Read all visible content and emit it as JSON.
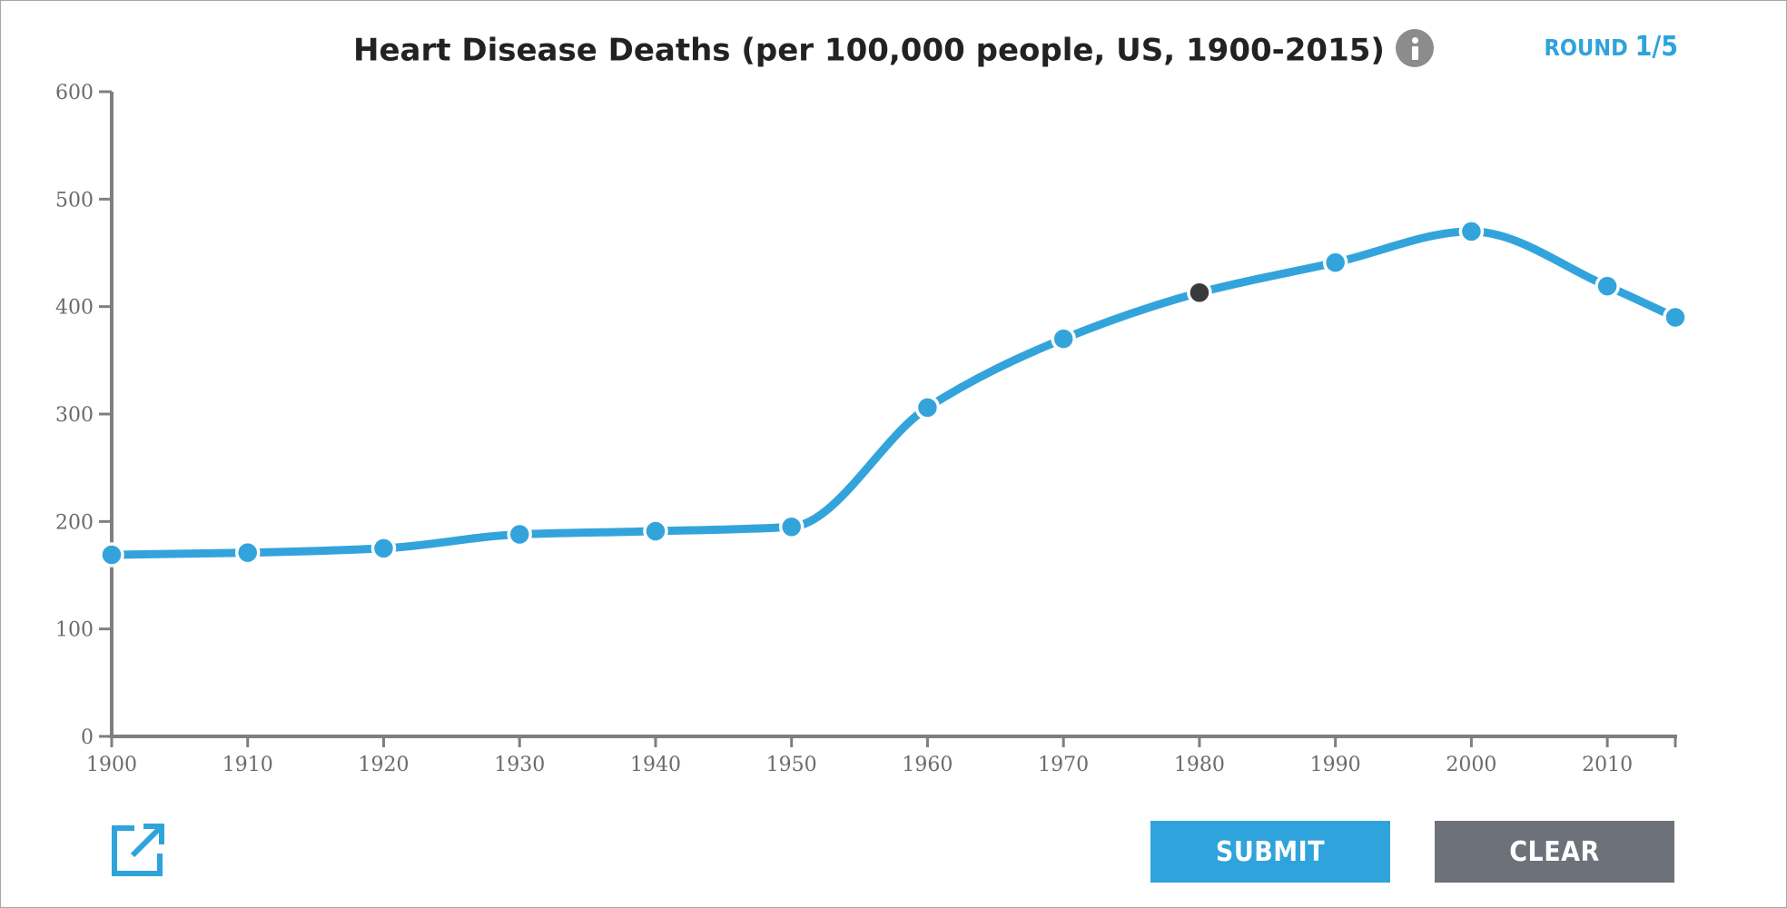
{
  "header": {
    "title": "Heart Disease Deaths (per 100,000 people, US, 1900-2015)",
    "round_label": "ROUND ",
    "round_value": "1/5"
  },
  "icons": {
    "info": "info-icon",
    "share": "external-link-icon"
  },
  "buttons": {
    "submit_label": "SUBMIT",
    "clear_label": "CLEAR"
  },
  "colors": {
    "accent": "#2fa3dc",
    "line": "#33a4db",
    "point": "#33a4db",
    "highlight_point": "#3a3a3a",
    "axis": "#7f7f7f",
    "tick_text": "#6b6b6b",
    "clear_button": "#6d7179"
  },
  "chart_data": {
    "type": "line",
    "title": "Heart Disease Deaths (per 100,000 people, US, 1900-2015)",
    "xlabel": "",
    "ylabel": "",
    "xlim": [
      1900,
      2015
    ],
    "ylim": [
      0,
      600
    ],
    "x_ticks": [
      1900,
      1910,
      1920,
      1930,
      1940,
      1950,
      1960,
      1970,
      1980,
      1990,
      2000,
      2010
    ],
    "y_ticks": [
      0,
      100,
      200,
      300,
      400,
      500,
      600
    ],
    "grid": false,
    "highlight_index": 8,
    "series": [
      {
        "name": "Heart Disease Deaths",
        "x": [
          1900,
          1910,
          1920,
          1930,
          1940,
          1950,
          1960,
          1970,
          1980,
          1990,
          2000,
          2010,
          2015
        ],
        "values": [
          169,
          171,
          175,
          188,
          191,
          195,
          306,
          370,
          413,
          441,
          470,
          419,
          390
        ]
      }
    ]
  }
}
